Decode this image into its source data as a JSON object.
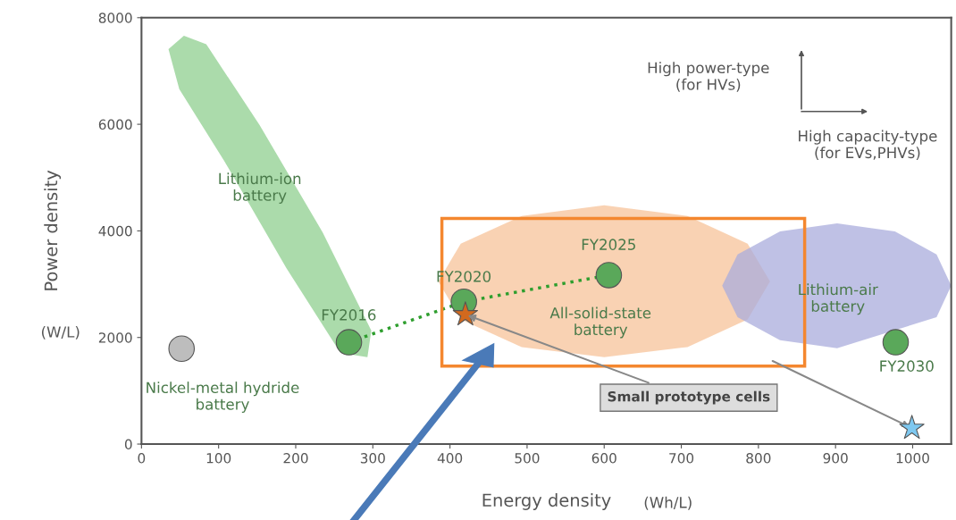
{
  "chart_data": {
    "type": "scatter",
    "xlabel": "Energy density",
    "ylabel": "Power density",
    "xlim": [
      0,
      1050
    ],
    "xticks": [
      0,
      100,
      200,
      300,
      400,
      500,
      600,
      700,
      800,
      900,
      1000
    ],
    "ylim": [
      0,
      8000
    ],
    "yticks": [
      0,
      2000,
      4000,
      6000,
      8000
    ],
    "grid": false,
    "legend": false,
    "series": [
      {
        "type": "area",
        "color": "#8fcf8f",
        "x": [
          55,
          84,
          153,
          235,
          298,
          293,
          258,
          188,
          107,
          49,
          35
        ],
        "values": [
          7660,
          7500,
          5990,
          3970,
          2130,
          1630,
          1710,
          3300,
          5320,
          6660,
          7410
        ]
      },
      {
        "type": "area",
        "color": "#f7c39a",
        "x": [
          815,
          786,
          708,
          600,
          493,
          414,
          385,
          414,
          493,
          600,
          708,
          786
        ],
        "values": [
          3050,
          3760,
          4280,
          4480,
          4280,
          3760,
          3050,
          2340,
          1820,
          1630,
          1820,
          2340
        ]
      },
      {
        "type": "area",
        "color": "#a9acdc",
        "x": [
          1050,
          1031,
          977,
          902,
          828,
          773,
          753,
          773,
          828,
          902,
          977,
          1031
        ],
        "values": [
          2970,
          3560,
          3990,
          4140,
          3990,
          3560,
          2970,
          2380,
          1950,
          1800,
          null,
          2380
        ]
      },
      {
        "type": "line",
        "color": "#2e9e2e",
        "line_style": "dotted",
        "marker": "none",
        "x": [
          269,
          418,
          606
        ],
        "values": [
          1910,
          2670,
          3170
        ]
      },
      {
        "type": "scatter",
        "color": "#5aa85a",
        "marker": "circle",
        "x": [
          269,
          418,
          606,
          978
        ],
        "values": [
          1910,
          2670,
          3170,
          1910
        ]
      },
      {
        "type": "scatter",
        "color": "#bdbdbd",
        "marker": "circle",
        "x": [
          52
        ],
        "values": [
          1790
        ]
      },
      {
        "type": "scatter",
        "color": "#d2691e",
        "marker": "star",
        "x": [
          420
        ],
        "values": [
          2430
        ]
      },
      {
        "type": "scatter",
        "color": "#7ec8f0",
        "marker": "star",
        "x": [
          999
        ],
        "values": [
          300
        ]
      }
    ],
    "annotations": [
      "Lithium-ion\nbattery",
      "FY2016",
      "FY2020",
      "FY2025",
      "All-solid-state\nbattery",
      "Lithium-air\nbattery",
      "FY2030",
      "Nickel-metal hydride\nbattery",
      "High power-type\n(for HVs)",
      "High capacity-type\n(for EVs,PHVs)",
      "(W/L)",
      "(Wh/L)",
      {
        "text": "Small prototype cells",
        "x": 420,
        "y": 2430
      }
    ]
  }
}
